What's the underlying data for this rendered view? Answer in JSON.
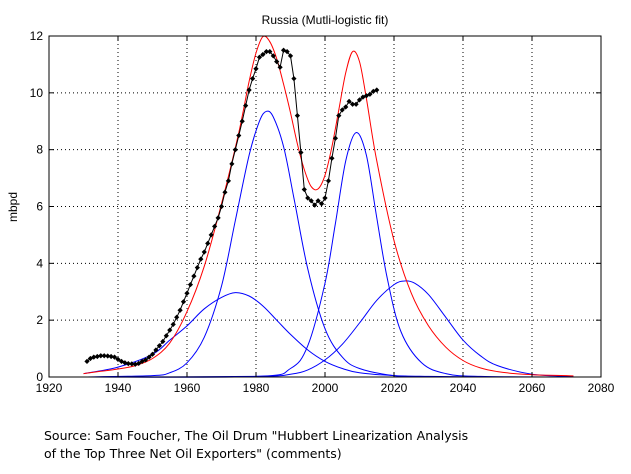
{
  "chart_data": {
    "type": "line",
    "title": "Russia (Mutli-logistic fit)",
    "xlabel": "",
    "ylabel": "mbpd",
    "xlim": [
      1920,
      2080
    ],
    "ylim": [
      0,
      12
    ],
    "xticks": [
      1920,
      1940,
      1960,
      1980,
      2000,
      2020,
      2040,
      2060,
      2080
    ],
    "yticks": [
      0,
      2,
      4,
      6,
      8,
      10,
      12
    ],
    "grid": true,
    "series": [
      {
        "color": "#ff0000",
        "style": "line",
        "x": [
          1930,
          1935,
          1940,
          1945,
          1950,
          1955,
          1960,
          1965,
          1970,
          1975,
          1978,
          1980,
          1982,
          1984,
          1986,
          1988,
          1990,
          1992,
          1994,
          1996,
          1998,
          2000,
          2002,
          2004,
          2006,
          2008,
          2010,
          2012,
          2015,
          2020,
          2025,
          2030,
          2035,
          2040,
          2045,
          2050,
          2055,
          2060,
          2065,
          2070,
          2072
        ],
        "values": [
          0.12,
          0.2,
          0.28,
          0.4,
          0.65,
          1.2,
          2.3,
          3.9,
          6.1,
          8.6,
          10.4,
          11.4,
          11.98,
          11.8,
          11.2,
          10.3,
          9.3,
          8.2,
          7.3,
          6.7,
          6.62,
          7.1,
          8.1,
          9.4,
          10.7,
          11.45,
          11.1,
          9.8,
          7.6,
          4.8,
          2.95,
          1.8,
          1.05,
          0.58,
          0.32,
          0.19,
          0.12,
          0.08,
          0.06,
          0.05,
          0.04
        ]
      },
      {
        "color": "#0000ff",
        "style": "line",
        "x": [
          1930,
          1940,
          1950,
          1955,
          1960,
          1965,
          1970,
          1974,
          1978,
          1982,
          1986,
          1990,
          1995,
          2000,
          2005,
          2010,
          2020,
          2030,
          2040,
          2050,
          2060,
          2072
        ],
        "values": [
          0.12,
          0.35,
          0.8,
          1.3,
          1.8,
          2.4,
          2.8,
          2.97,
          2.85,
          2.5,
          2.0,
          1.5,
          0.95,
          0.55,
          0.3,
          0.15,
          0.05,
          0.02,
          0.01,
          0.0,
          0.0,
          0.0
        ]
      },
      {
        "color": "#0000ff",
        "style": "line",
        "x": [
          1930,
          1950,
          1955,
          1960,
          1965,
          1970,
          1974,
          1978,
          1981,
          1983,
          1985,
          1988,
          1991,
          1995,
          2000,
          2005,
          2010,
          2020,
          2030,
          2040,
          2072
        ],
        "values": [
          0.0,
          0.05,
          0.15,
          0.5,
          1.4,
          3.2,
          5.5,
          7.8,
          9.0,
          9.35,
          9.15,
          8.1,
          6.3,
          3.8,
          1.7,
          0.7,
          0.3,
          0.05,
          0.01,
          0.0,
          0.0
        ]
      },
      {
        "color": "#0000ff",
        "style": "line",
        "x": [
          1930,
          1980,
          1990,
          1995,
          2000,
          2003,
          2006,
          2009,
          2012,
          2015,
          2018,
          2022,
          2028,
          2035,
          2045,
          2072
        ],
        "values": [
          0.0,
          0.02,
          0.3,
          1.1,
          3.3,
          5.4,
          7.6,
          8.6,
          7.8,
          5.6,
          3.5,
          1.6,
          0.5,
          0.12,
          0.02,
          0.0
        ]
      },
      {
        "color": "#0000ff",
        "style": "line",
        "x": [
          1930,
          1980,
          1990,
          1995,
          2000,
          2005,
          2010,
          2015,
          2020,
          2023,
          2026,
          2030,
          2035,
          2040,
          2045,
          2050,
          2060,
          2072
        ],
        "values": [
          0.0,
          0.02,
          0.1,
          0.25,
          0.6,
          1.15,
          1.9,
          2.7,
          3.25,
          3.38,
          3.3,
          2.9,
          2.1,
          1.3,
          0.75,
          0.4,
          0.1,
          0.02
        ]
      },
      {
        "color": "#000000",
        "style": "markers-line",
        "x": [
          1931,
          1932,
          1933,
          1934,
          1935,
          1936,
          1937,
          1938,
          1939,
          1940,
          1941,
          1942,
          1943,
          1944,
          1945,
          1946,
          1947,
          1948,
          1949,
          1950,
          1951,
          1952,
          1953,
          1954,
          1955,
          1956,
          1957,
          1958,
          1959,
          1960,
          1961,
          1962,
          1963,
          1964,
          1965,
          1966,
          1967,
          1968,
          1969,
          1970,
          1971,
          1972,
          1973,
          1974,
          1975,
          1976,
          1977,
          1978,
          1979,
          1980,
          1981,
          1982,
          1983,
          1984,
          1985,
          1986,
          1987,
          1988,
          1989,
          1990,
          1991,
          1992,
          1993,
          1994,
          1995,
          1996,
          1997,
          1998,
          1999,
          2000,
          2001,
          2002,
          2003,
          2004,
          2005,
          2006,
          2007,
          2008,
          2009,
          2010,
          2011,
          2012,
          2013,
          2014,
          2015
        ],
        "values": [
          0.55,
          0.65,
          0.7,
          0.72,
          0.75,
          0.75,
          0.74,
          0.72,
          0.7,
          0.62,
          0.55,
          0.5,
          0.47,
          0.46,
          0.45,
          0.48,
          0.55,
          0.6,
          0.7,
          0.8,
          0.95,
          1.1,
          1.25,
          1.45,
          1.65,
          1.85,
          2.1,
          2.35,
          2.65,
          2.95,
          3.25,
          3.55,
          3.85,
          4.15,
          4.4,
          4.7,
          5.0,
          5.3,
          5.6,
          6.0,
          6.5,
          6.9,
          7.5,
          8.0,
          8.5,
          9.0,
          9.55,
          10.1,
          10.5,
          10.85,
          11.25,
          11.35,
          11.45,
          11.45,
          11.3,
          11.1,
          10.9,
          11.5,
          11.45,
          11.3,
          10.5,
          9.2,
          7.9,
          6.6,
          6.3,
          6.2,
          6.05,
          6.2,
          6.1,
          6.3,
          6.9,
          7.7,
          8.4,
          9.2,
          9.4,
          9.5,
          9.7,
          9.6,
          9.6,
          9.75,
          9.85,
          9.9,
          9.95,
          10.05,
          10.1
        ]
      }
    ]
  },
  "source": {
    "line1": "Source: Sam Foucher, The Oil Drum \"Hubbert Linearization Analysis",
    "line2": "of the Top Three Net Oil Exporters\" (comments)"
  }
}
